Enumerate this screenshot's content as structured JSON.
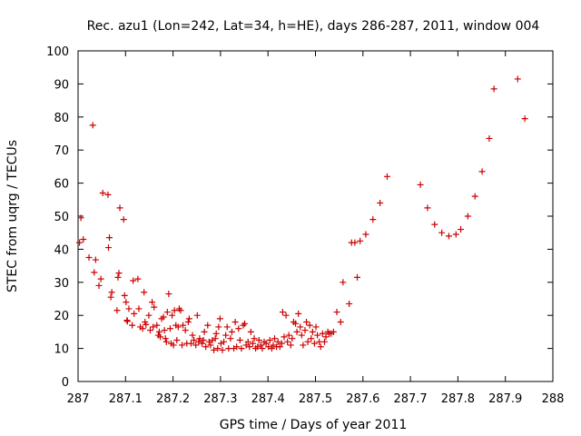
{
  "chart_data": {
    "type": "scatter",
    "title": "Rec. azu1 (Lon=242, Lat=34, h=HE), days 286-287, 2011, window 004",
    "xlabel": "GPS time / Days of year 2011",
    "ylabel": "STEC from uqrg / TECUs",
    "xlim": [
      287,
      288
    ],
    "ylim": [
      0,
      100
    ],
    "x_ticks": [
      "287",
      "287.1",
      "287.2",
      "287.3",
      "287.4",
      "287.5",
      "287.6",
      "287.7",
      "287.8",
      "287.9",
      "288"
    ],
    "y_ticks": [
      "0",
      "10",
      "20",
      "30",
      "40",
      "50",
      "60",
      "70",
      "80",
      "90",
      "100"
    ],
    "grid": false,
    "legend": "none",
    "marker": "plus",
    "color": "#cc0000",
    "series": [
      {
        "points": [
          [
            287.003,
            42.0
          ],
          [
            287.006,
            49.5
          ],
          [
            287.011,
            43.0
          ],
          [
            287.023,
            37.5
          ],
          [
            287.031,
            77.5
          ],
          [
            287.034,
            33.0
          ],
          [
            287.037,
            36.8
          ],
          [
            287.044,
            29.0
          ],
          [
            287.048,
            31.0
          ],
          [
            287.052,
            57.0
          ],
          [
            287.063,
            56.5
          ],
          [
            287.064,
            40.5
          ],
          [
            287.066,
            43.5
          ],
          [
            287.069,
            25.5
          ],
          [
            287.071,
            27.0
          ],
          [
            287.082,
            21.5
          ],
          [
            287.084,
            31.5
          ],
          [
            287.086,
            32.8
          ],
          [
            287.088,
            52.5
          ],
          [
            287.096,
            49.0
          ],
          [
            287.098,
            26.0
          ],
          [
            287.101,
            24.0
          ],
          [
            287.103,
            18.5
          ],
          [
            287.104,
            18.2
          ],
          [
            287.107,
            22.0
          ],
          [
            287.114,
            17.0
          ],
          [
            287.116,
            30.5
          ],
          [
            287.118,
            20.5
          ],
          [
            287.126,
            31.0
          ],
          [
            287.128,
            22.0
          ],
          [
            287.131,
            16.5
          ],
          [
            287.136,
            16.0
          ],
          [
            287.139,
            27.0
          ],
          [
            287.141,
            18.0
          ],
          [
            287.143,
            17.2
          ],
          [
            287.149,
            20.0
          ],
          [
            287.152,
            15.5
          ],
          [
            287.156,
            24.0
          ],
          [
            287.158,
            16.5
          ],
          [
            287.16,
            22.5
          ],
          [
            287.166,
            17.0
          ],
          [
            287.169,
            14.0
          ],
          [
            287.171,
            15.0
          ],
          [
            287.173,
            13.5
          ],
          [
            287.176,
            19.0
          ],
          [
            287.18,
            19.5
          ],
          [
            287.182,
            15.5
          ],
          [
            287.184,
            13.0
          ],
          [
            287.186,
            12.0
          ],
          [
            287.188,
            21.0
          ],
          [
            287.191,
            26.5
          ],
          [
            287.194,
            16.0
          ],
          [
            287.196,
            11.5
          ],
          [
            287.198,
            20.0
          ],
          [
            287.201,
            11.0
          ],
          [
            287.203,
            21.5
          ],
          [
            287.206,
            17.0
          ],
          [
            287.208,
            12.5
          ],
          [
            287.211,
            16.5
          ],
          [
            287.213,
            22.0
          ],
          [
            287.216,
            21.5
          ],
          [
            287.219,
            11.0
          ],
          [
            287.221,
            17.0
          ],
          [
            287.226,
            15.5
          ],
          [
            287.229,
            11.5
          ],
          [
            287.232,
            18.0
          ],
          [
            287.234,
            19.0
          ],
          [
            287.238,
            11.5
          ],
          [
            287.241,
            14.0
          ],
          [
            287.244,
            12.5
          ],
          [
            287.248,
            11.0
          ],
          [
            287.251,
            20.0
          ],
          [
            287.254,
            12.0
          ],
          [
            287.256,
            13.0
          ],
          [
            287.261,
            11.5
          ],
          [
            287.264,
            12.5
          ],
          [
            287.266,
            15.0
          ],
          [
            287.269,
            10.5
          ],
          [
            287.273,
            17.0
          ],
          [
            287.276,
            12.0
          ],
          [
            287.279,
            11.0
          ],
          [
            287.283,
            12.5
          ],
          [
            287.286,
            9.5
          ],
          [
            287.289,
            13.0
          ],
          [
            287.291,
            14.5
          ],
          [
            287.294,
            10.0
          ],
          [
            287.296,
            16.5
          ],
          [
            287.299,
            19.0
          ],
          [
            287.301,
            11.5
          ],
          [
            287.304,
            9.5
          ],
          [
            287.307,
            12.0
          ],
          [
            287.311,
            14.0
          ],
          [
            287.314,
            16.5
          ],
          [
            287.317,
            10.0
          ],
          [
            287.321,
            13.0
          ],
          [
            287.324,
            15.0
          ],
          [
            287.328,
            10.0
          ],
          [
            287.331,
            18.0
          ],
          [
            287.334,
            10.5
          ],
          [
            287.338,
            16.0
          ],
          [
            287.341,
            12.5
          ],
          [
            287.344,
            10.0
          ],
          [
            287.348,
            17.0
          ],
          [
            287.351,
            17.5
          ],
          [
            287.354,
            11.0
          ],
          [
            287.358,
            12.0
          ],
          [
            287.361,
            10.5
          ],
          [
            287.364,
            15.0
          ],
          [
            287.368,
            11.5
          ],
          [
            287.371,
            13.0
          ],
          [
            287.374,
            10.0
          ],
          [
            287.378,
            10.5
          ],
          [
            287.381,
            12.5
          ],
          [
            287.385,
            11.0
          ],
          [
            287.388,
            10.0
          ],
          [
            287.392,
            12.0
          ],
          [
            287.396,
            11.5
          ],
          [
            287.401,
            10.5
          ],
          [
            287.404,
            12.5
          ],
          [
            287.408,
            10.0
          ],
          [
            287.411,
            11.0
          ],
          [
            287.414,
            13.0
          ],
          [
            287.418,
            10.5
          ],
          [
            287.421,
            12.0
          ],
          [
            287.425,
            10.5
          ],
          [
            287.429,
            11.5
          ],
          [
            287.431,
            21.0
          ],
          [
            287.434,
            13.5
          ],
          [
            287.438,
            20.0
          ],
          [
            287.441,
            12.0
          ],
          [
            287.444,
            14.0
          ],
          [
            287.448,
            11.0
          ],
          [
            287.451,
            13.0
          ],
          [
            287.454,
            18.0
          ],
          [
            287.458,
            17.5
          ],
          [
            287.461,
            15.0
          ],
          [
            287.464,
            20.5
          ],
          [
            287.468,
            16.5
          ],
          [
            287.471,
            14.0
          ],
          [
            287.474,
            11.0
          ],
          [
            287.478,
            15.5
          ],
          [
            287.481,
            18.0
          ],
          [
            287.484,
            12.0
          ],
          [
            287.488,
            17.0
          ],
          [
            287.491,
            13.0
          ],
          [
            287.494,
            15.0
          ],
          [
            287.498,
            11.5
          ],
          [
            287.501,
            16.5
          ],
          [
            287.504,
            14.0
          ],
          [
            287.508,
            12.0
          ],
          [
            287.511,
            10.5
          ],
          [
            287.515,
            14.5
          ],
          [
            287.519,
            12.0
          ],
          [
            287.522,
            13.5
          ],
          [
            287.526,
            15.0
          ],
          [
            287.529,
            14.5
          ],
          [
            287.533,
            14.5
          ],
          [
            287.538,
            15.0
          ],
          [
            287.545,
            21.0
          ],
          [
            287.553,
            18.0
          ],
          [
            287.558,
            30.0
          ],
          [
            287.571,
            23.5
          ],
          [
            287.576,
            42.0
          ],
          [
            287.583,
            42.0
          ],
          [
            287.588,
            31.5
          ],
          [
            287.594,
            42.5
          ],
          [
            287.606,
            44.5
          ],
          [
            287.621,
            49.0
          ],
          [
            287.636,
            54.0
          ],
          [
            287.651,
            62.0
          ],
          [
            287.721,
            59.5
          ],
          [
            287.736,
            52.5
          ],
          [
            287.751,
            47.5
          ],
          [
            287.766,
            45.0
          ],
          [
            287.781,
            44.0
          ],
          [
            287.796,
            44.5
          ],
          [
            287.806,
            46.0
          ],
          [
            287.821,
            50.0
          ],
          [
            287.836,
            56.0
          ],
          [
            287.851,
            63.5
          ],
          [
            287.866,
            73.5
          ],
          [
            287.876,
            88.5
          ],
          [
            287.926,
            91.5
          ],
          [
            287.941,
            79.5
          ]
        ]
      }
    ]
  }
}
